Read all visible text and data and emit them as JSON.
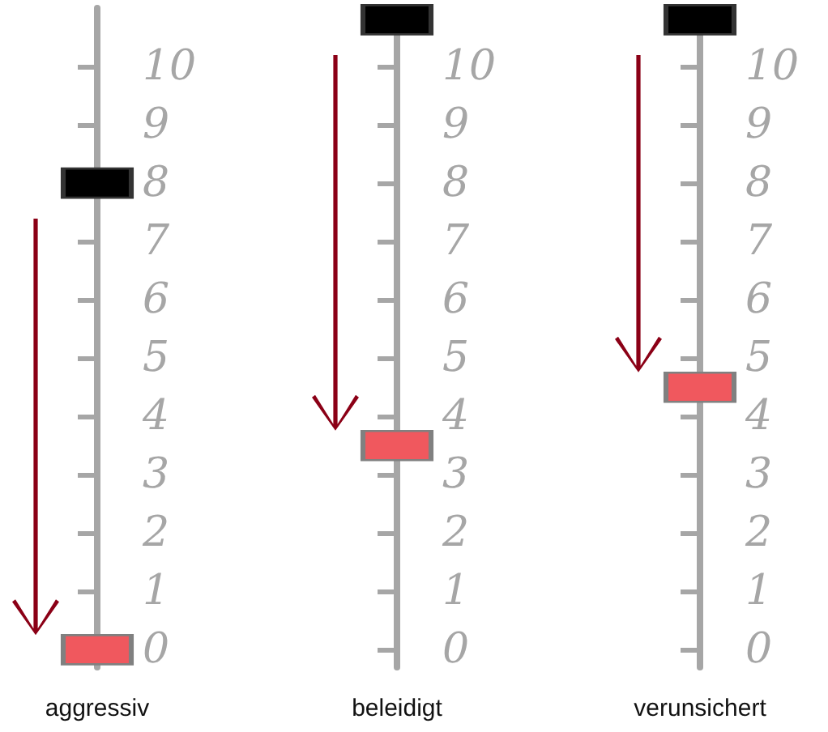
{
  "chart_data": [
    {
      "type": "scatter",
      "categories": [
        "aggressiv"
      ],
      "marker": "square",
      "ylim": [
        -0.3,
        11
      ],
      "yticks": [
        0,
        1,
        2,
        3,
        4,
        5,
        6,
        7,
        8,
        9,
        10
      ],
      "series": [
        {
          "color": "#000000",
          "values": [
            8
          ]
        },
        {
          "color": "#f0585e",
          "values": [
            0
          ]
        }
      ]
    },
    {
      "type": "scatter",
      "categories": [
        "beleidigt"
      ],
      "marker": "square",
      "ylim": [
        -0.3,
        11
      ],
      "yticks": [
        0,
        1,
        2,
        3,
        4,
        5,
        6,
        7,
        8,
        9,
        10
      ],
      "series": [
        {
          "color": "#000000",
          "values": [
            10.8
          ]
        },
        {
          "color": "#f0585e",
          "values": [
            3.5
          ]
        }
      ]
    },
    {
      "type": "scatter",
      "categories": [
        "verunsichert"
      ],
      "marker": "square",
      "ylim": [
        -0.3,
        11
      ],
      "yticks": [
        0,
        1,
        2,
        3,
        4,
        5,
        6,
        7,
        8,
        9,
        10
      ],
      "series": [
        {
          "color": "#000000",
          "values": [
            10.8
          ]
        },
        {
          "color": "#f0585e",
          "values": [
            4.5
          ]
        }
      ]
    }
  ]
}
